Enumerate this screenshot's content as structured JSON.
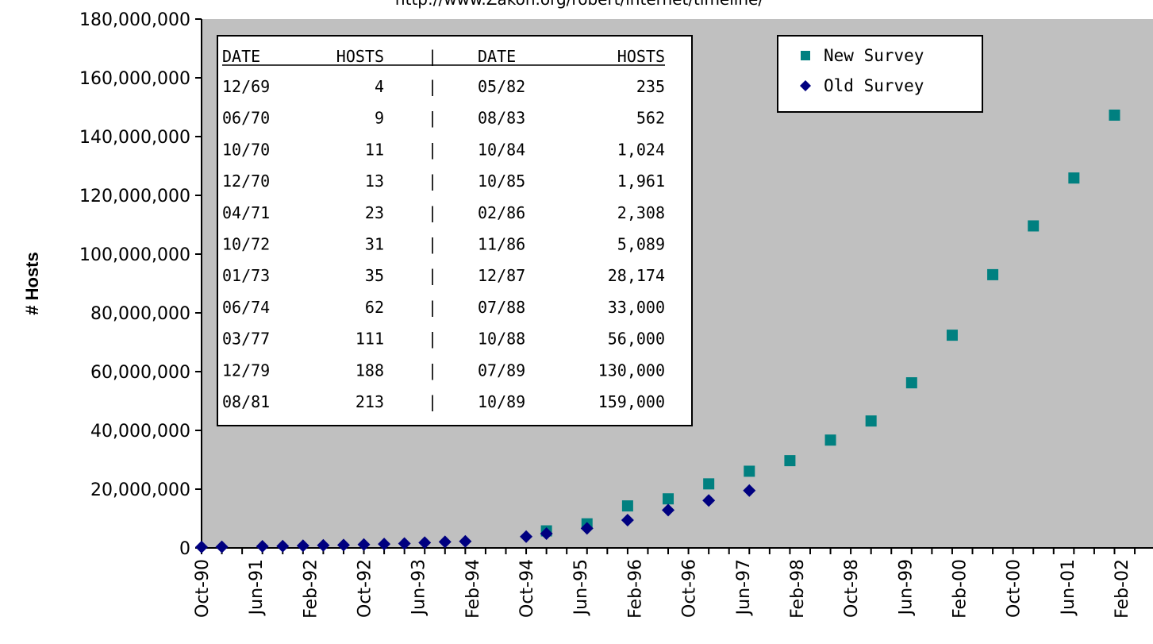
{
  "chart_data": {
    "type": "scatter",
    "subtitle": "http://www.Zakon.org/robert/internet/timeline/",
    "ylabel": "# Hosts",
    "ylim": [
      0,
      180000000
    ],
    "y_ticks": [
      "0",
      "20,000,000",
      "40,000,000",
      "60,000,000",
      "80,000,000",
      "100,000,000",
      "120,000,000",
      "140,000,000",
      "160,000,000",
      "180,000,000"
    ],
    "x_ticks": [
      "Oct-90",
      "Jun-91",
      "Feb-92",
      "Oct-92",
      "Jun-93",
      "Feb-94",
      "Oct-94",
      "Jun-95",
      "Feb-96",
      "Oct-96",
      "Jun-97",
      "Feb-98",
      "Oct-98",
      "Jun-99",
      "Feb-00",
      "Oct-00",
      "Jun-01",
      "Feb-02"
    ],
    "x_range": [
      "Oct-90",
      "Jun-02"
    ],
    "grid": false,
    "plot_background": "#c0c0c0",
    "legend_position": "top-right",
    "series": [
      {
        "name": "New Survey",
        "marker": "square",
        "color": "#008080",
        "x": [
          "Jan-95",
          "Jul-95",
          "Jan-96",
          "Jul-96",
          "Jan-97",
          "Jul-97",
          "Jan-98",
          "Jul-98",
          "Jan-99",
          "Jul-99",
          "Jan-00",
          "Jul-00",
          "Jan-01",
          "Jul-01",
          "Jan-02"
        ],
        "values": [
          5800000,
          8200000,
          14300000,
          16700000,
          21800000,
          26100000,
          29700000,
          36700000,
          43200000,
          56200000,
          72400000,
          93000000,
          109600000,
          125900000,
          147300000
        ]
      },
      {
        "name": "Old Survey",
        "marker": "diamond",
        "color": "#000080",
        "x": [
          "Oct-90",
          "Jan-91",
          "Jul-91",
          "Oct-91",
          "Jan-92",
          "Apr-92",
          "Jul-92",
          "Oct-92",
          "Jan-93",
          "Apr-93",
          "Jul-93",
          "Oct-93",
          "Jan-94",
          "Oct-94",
          "Jan-95",
          "Jul-95",
          "Jan-96",
          "Jul-96",
          "Jan-97",
          "Jul-97"
        ],
        "values": [
          313000,
          376000,
          535000,
          617000,
          727000,
          890000,
          992000,
          1136000,
          1313000,
          1486000,
          1776000,
          2056000,
          2217000,
          3864000,
          4852000,
          6642000,
          9472000,
          12881000,
          16146000,
          19540000
        ]
      }
    ],
    "inset_table": {
      "headers": [
        "DATE",
        "HOSTS",
        "|",
        "DATE",
        "HOSTS"
      ],
      "rows": [
        [
          "12/69",
          "4",
          "|",
          "05/82",
          "235"
        ],
        [
          "06/70",
          "9",
          "|",
          "08/83",
          "562"
        ],
        [
          "10/70",
          "11",
          "|",
          "10/84",
          "1,024"
        ],
        [
          "12/70",
          "13",
          "|",
          "10/85",
          "1,961"
        ],
        [
          "04/71",
          "23",
          "|",
          "02/86",
          "2,308"
        ],
        [
          "10/72",
          "31",
          "|",
          "11/86",
          "5,089"
        ],
        [
          "01/73",
          "35",
          "|",
          "12/87",
          "28,174"
        ],
        [
          "06/74",
          "62",
          "|",
          "07/88",
          "33,000"
        ],
        [
          "03/77",
          "111",
          "|",
          "10/88",
          "56,000"
        ],
        [
          "12/79",
          "188",
          "|",
          "07/89",
          "130,000"
        ],
        [
          "08/81",
          "213",
          "|",
          "10/89",
          "159,000"
        ]
      ]
    }
  }
}
